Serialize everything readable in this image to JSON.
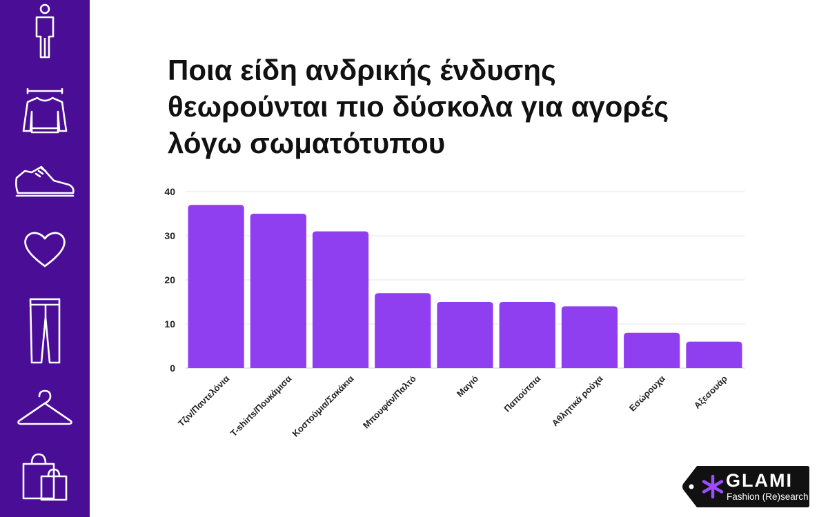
{
  "sidebar": {
    "icons": [
      "person-icon",
      "sweater-icon",
      "sneaker-icon",
      "heart-icon",
      "jeans-icon",
      "hanger-icon",
      "shopping-bags-icon"
    ]
  },
  "chart_data": {
    "type": "bar",
    "title_lines": [
      "Ποια είδη ανδρικής ένδυσης",
      "θεωρούνται πιο δύσκολα για αγορές",
      "λόγω σωματότυπου"
    ],
    "categories": [
      "Τζιν/Παντελόνια",
      "T-shirts/Πουκάμισα",
      "Κοστούμια/Σακάκια",
      "Μπουφάν/Παλτό",
      "Μαγιό",
      "Παπούτσια",
      "Αθλητικά ρούχα",
      "Εσώρουχα",
      "Αξεσουάρ"
    ],
    "values": [
      37,
      35,
      31,
      17,
      15,
      15,
      14,
      8,
      6
    ],
    "yticks": [
      0,
      10,
      20,
      30,
      40
    ],
    "ylim": [
      0,
      40
    ],
    "grid": true,
    "legend": "none",
    "xlabel": "",
    "ylabel": "",
    "bar_color": "#8f3ff0"
  },
  "logo": {
    "name": "GLAMI",
    "tagline": "Fashion (Re)search"
  },
  "colors": {
    "sidebar": "#4a0d96",
    "bar": "#8f3ff0",
    "grid": "#e6e6e6",
    "asterisk": "#9b4dff"
  }
}
